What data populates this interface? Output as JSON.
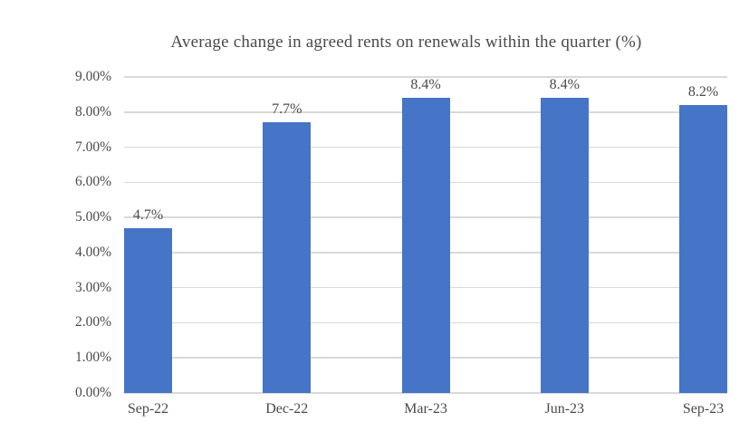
{
  "chart_data": {
    "type": "bar",
    "title": "Average change in agreed rents on renewals within the quarter (%)",
    "categories": [
      "Sep-22",
      "Dec-22",
      "Mar-23",
      "Jun-23",
      "Sep-23"
    ],
    "values": [
      4.7,
      7.7,
      8.4,
      8.4,
      8.2
    ],
    "data_labels": [
      "4.7%",
      "7.7%",
      "8.4%",
      "8.4%",
      "8.2%"
    ],
    "y_ticks": [
      "0.00%",
      "1.00%",
      "2.00%",
      "3.00%",
      "4.00%",
      "5.00%",
      "6.00%",
      "7.00%",
      "8.00%",
      "9.00%"
    ],
    "ylim": [
      0,
      9
    ],
    "xlabel": "",
    "ylabel": "",
    "grid": "horizontal",
    "legend": "none",
    "bar_color": "#4674C6",
    "gridline_color": "#d9d9d9",
    "text_color": "#4a4a4a",
    "background_color": "#ffffff"
  }
}
